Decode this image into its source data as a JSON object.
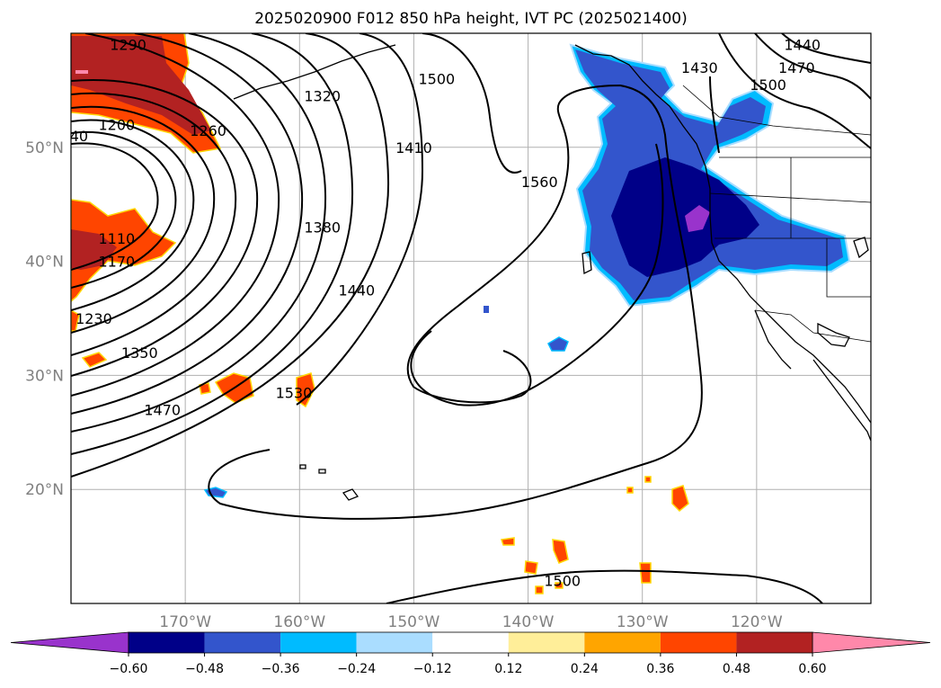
{
  "chart_data": {
    "type": "heatmap",
    "title": "2025020900 F012 850 hPa height, IVT PC (2025021400)",
    "lon_labels": [
      "170°W",
      "160°W",
      "150°W",
      "140°W",
      "130°W",
      "120°W"
    ],
    "lat_labels": [
      "50°N",
      "40°N",
      "30°N",
      "20°N"
    ],
    "lon_values": [
      -170,
      -160,
      -150,
      -140,
      -130,
      -120
    ],
    "lat_values": [
      50,
      40,
      30,
      20
    ],
    "xlim": [
      -180,
      -110
    ],
    "ylim": [
      10,
      60
    ],
    "grid": true,
    "colorbar": {
      "orientation": "horizontal",
      "extend": "both",
      "boundaries": [
        -0.6,
        -0.48,
        -0.36,
        -0.24,
        -0.12,
        0.12,
        0.24,
        0.36,
        0.48,
        0.6
      ],
      "tick_labels": [
        "−0.60",
        "−0.48",
        "−0.36",
        "−0.24",
        "−0.12",
        "0.12",
        "0.24",
        "0.36",
        "0.48",
        "0.60"
      ],
      "colors": [
        "#9933cc",
        "#000088",
        "#3355cc",
        "#00bbff",
        "#aaddff",
        "#ffffff",
        "#ffee99",
        "#ffa500",
        "#ff4500",
        "#b22222",
        "#ff88aa"
      ]
    },
    "contour_labels": [
      {
        "text": "1290",
        "lon": -175.0,
        "lat": 59.0
      },
      {
        "text": "1200",
        "lon": -176.0,
        "lat": 52.0
      },
      {
        "text": "1260",
        "lon": -168.0,
        "lat": 51.5
      },
      {
        "text": "40",
        "lon": -179.3,
        "lat": 51.0
      },
      {
        "text": "1320",
        "lon": -158.0,
        "lat": 54.5
      },
      {
        "text": "1500",
        "lon": -148.0,
        "lat": 56.0
      },
      {
        "text": "1410",
        "lon": -150.0,
        "lat": 50.0
      },
      {
        "text": "1380",
        "lon": -158.0,
        "lat": 43.0
      },
      {
        "text": "1440",
        "lon": -155.0,
        "lat": 37.5
      },
      {
        "text": "1560",
        "lon": -139.0,
        "lat": 47.0
      },
      {
        "text": "1110",
        "lon": -176.0,
        "lat": 42.0
      },
      {
        "text": "1170",
        "lon": -176.0,
        "lat": 40.0
      },
      {
        "text": "1230",
        "lon": -178.0,
        "lat": 35.0
      },
      {
        "text": "1350",
        "lon": -174.0,
        "lat": 32.0
      },
      {
        "text": "1470",
        "lon": -172.0,
        "lat": 27.0
      },
      {
        "text": "1530",
        "lon": -160.5,
        "lat": 28.5
      },
      {
        "text": "1430",
        "lon": -125.0,
        "lat": 57.0
      },
      {
        "text": "1440",
        "lon": -116.0,
        "lat": 59.0
      },
      {
        "text": "1470",
        "lon": -116.5,
        "lat": 57.0
      },
      {
        "text": "1500",
        "lon": -119.0,
        "lat": 55.5
      },
      {
        "text": "1500",
        "lon": -137.0,
        "lat": 12.0
      }
    ]
  }
}
